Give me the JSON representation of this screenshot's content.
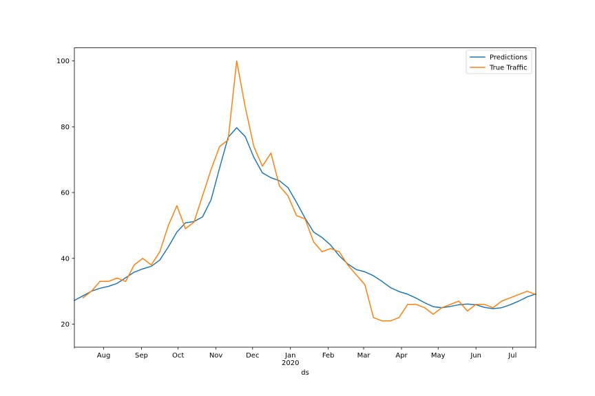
{
  "chart_data": {
    "type": "line",
    "title": "",
    "xlabel": "ds",
    "ylabel": "",
    "x_range": [
      "2019-07-08",
      "2020-07-20"
    ],
    "ylim": [
      13,
      104
    ],
    "grid": false,
    "legend_position": "upper-right",
    "y_ticks": [
      20,
      40,
      60,
      80,
      100
    ],
    "x_ticks": [
      {
        "date": "2019-08-01",
        "label": "Aug"
      },
      {
        "date": "2019-09-01",
        "label": "Sep"
      },
      {
        "date": "2019-10-01",
        "label": "Oct"
      },
      {
        "date": "2019-11-01",
        "label": "Nov"
      },
      {
        "date": "2019-12-01",
        "label": "Dec"
      },
      {
        "date": "2020-01-01",
        "label": "Jan",
        "sublabel": "2020"
      },
      {
        "date": "2020-02-01",
        "label": "Feb"
      },
      {
        "date": "2020-03-01",
        "label": "Mar"
      },
      {
        "date": "2020-04-01",
        "label": "Apr"
      },
      {
        "date": "2020-05-01",
        "label": "May"
      },
      {
        "date": "2020-06-01",
        "label": "Jun"
      },
      {
        "date": "2020-07-01",
        "label": "Jul"
      }
    ],
    "series": [
      {
        "name": "Predictions",
        "color": "#1f77b4",
        "x": [
          "2019-07-08",
          "2019-07-15",
          "2019-07-22",
          "2019-07-29",
          "2019-08-05",
          "2019-08-12",
          "2019-08-19",
          "2019-08-26",
          "2019-09-02",
          "2019-09-09",
          "2019-09-16",
          "2019-09-23",
          "2019-09-30",
          "2019-10-07",
          "2019-10-14",
          "2019-10-21",
          "2019-10-28",
          "2019-11-04",
          "2019-11-11",
          "2019-11-18",
          "2019-11-25",
          "2019-12-02",
          "2019-12-09",
          "2019-12-16",
          "2019-12-23",
          "2019-12-30",
          "2020-01-06",
          "2020-01-13",
          "2020-01-20",
          "2020-01-27",
          "2020-02-03",
          "2020-02-10",
          "2020-02-17",
          "2020-02-24",
          "2020-03-02",
          "2020-03-09",
          "2020-03-16",
          "2020-03-23",
          "2020-03-30",
          "2020-04-06",
          "2020-04-13",
          "2020-04-20",
          "2020-04-27",
          "2020-05-04",
          "2020-05-11",
          "2020-05-18",
          "2020-05-25",
          "2020-06-01",
          "2020-06-08",
          "2020-06-15",
          "2020-06-22",
          "2020-06-29",
          "2020-07-06",
          "2020-07-13",
          "2020-07-20"
        ],
        "y": [
          27.2,
          28.6,
          30.0,
          30.9,
          31.5,
          32.4,
          34.1,
          35.8,
          36.8,
          37.6,
          39.5,
          43.5,
          48.0,
          50.8,
          51.2,
          52.6,
          57.8,
          67.5,
          76.8,
          79.7,
          77.0,
          70.7,
          66.0,
          64.5,
          63.6,
          61.5,
          57.0,
          52.2,
          48.0,
          46.3,
          44.0,
          40.8,
          38.3,
          36.6,
          35.9,
          34.7,
          33.0,
          31.1,
          29.9,
          29.1,
          27.9,
          26.5,
          25.3,
          25.0,
          25.4,
          25.9,
          26.1,
          25.9,
          25.1,
          24.7,
          25.0,
          25.9,
          27.0,
          28.3,
          29.2
        ]
      },
      {
        "name": "True Traffic",
        "color": "#ff7f0e",
        "x": [
          "2019-07-15",
          "2019-07-22",
          "2019-07-29",
          "2019-08-05",
          "2019-08-12",
          "2019-08-19",
          "2019-08-26",
          "2019-09-02",
          "2019-09-09",
          "2019-09-16",
          "2019-09-23",
          "2019-09-30",
          "2019-10-07",
          "2019-10-14",
          "2019-10-21",
          "2019-10-28",
          "2019-11-04",
          "2019-11-11",
          "2019-11-18",
          "2019-11-25",
          "2019-12-02",
          "2019-12-09",
          "2019-12-16",
          "2019-12-23",
          "2019-12-30",
          "2020-01-06",
          "2020-01-13",
          "2020-01-20",
          "2020-01-27",
          "2020-02-03",
          "2020-02-10",
          "2020-02-17",
          "2020-02-24",
          "2020-03-02",
          "2020-03-09",
          "2020-03-16",
          "2020-03-23",
          "2020-03-30",
          "2020-04-06",
          "2020-04-13",
          "2020-04-20",
          "2020-04-27",
          "2020-05-04",
          "2020-05-11",
          "2020-05-18",
          "2020-05-25",
          "2020-06-01",
          "2020-06-08",
          "2020-06-15",
          "2020-06-22",
          "2020-06-29",
          "2020-07-06",
          "2020-07-13",
          "2020-07-20"
        ],
        "y": [
          28,
          30,
          33,
          33,
          34,
          33,
          38,
          40,
          38,
          42,
          50,
          56,
          49,
          51,
          59,
          67,
          74,
          76,
          100,
          86,
          74,
          68,
          72,
          62,
          59,
          53,
          52,
          45,
          42,
          43,
          42,
          38,
          35,
          32,
          22,
          21,
          21,
          22,
          26,
          26,
          25,
          23,
          25,
          26,
          27,
          24,
          26,
          26,
          25,
          27,
          28,
          29,
          30,
          29
        ]
      }
    ]
  }
}
